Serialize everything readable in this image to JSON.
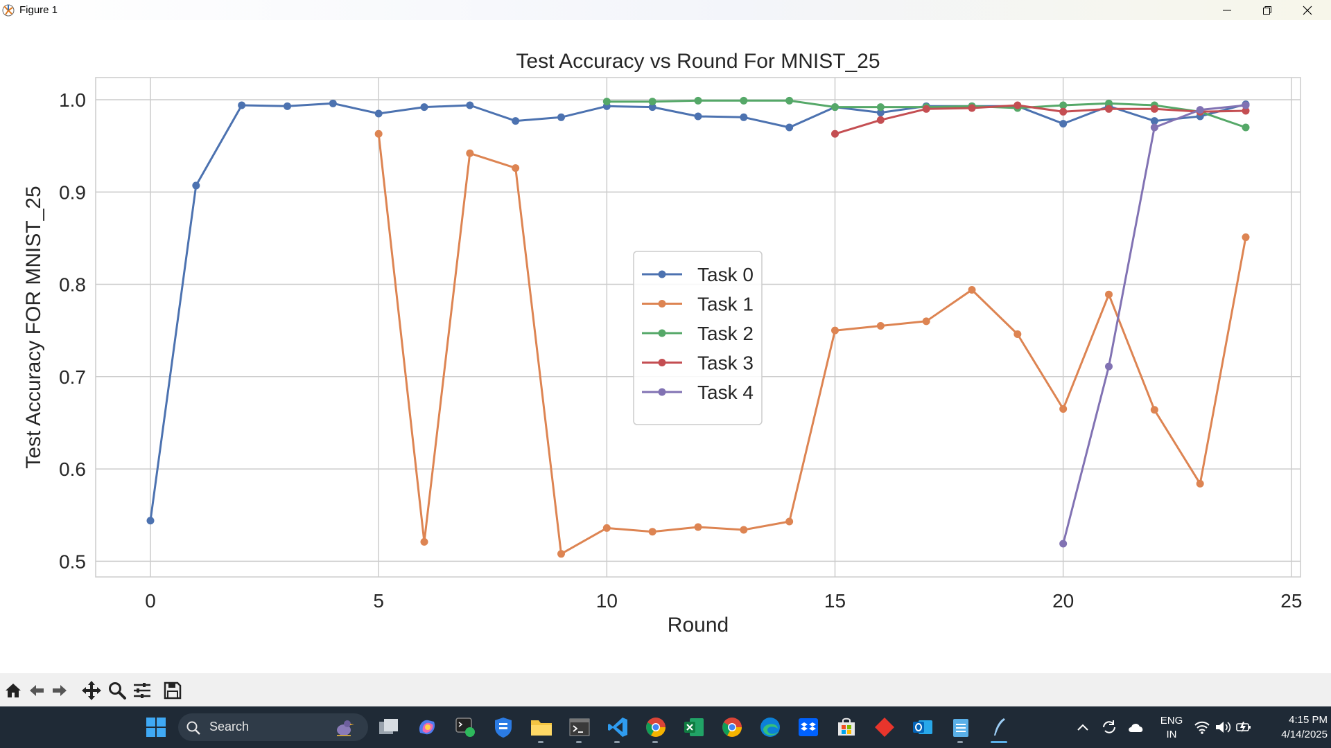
{
  "window": {
    "title": "Figure 1"
  },
  "chart_data": {
    "type": "line",
    "title": "Test Accuracy vs Round For MNIST_25",
    "xlabel": "Round",
    "ylabel": "Test Accuracy FOR MNIST_25",
    "xlim": [
      -1.2,
      25.2
    ],
    "ylim": [
      0.483,
      1.024
    ],
    "xticks": [
      0,
      5,
      10,
      15,
      20,
      25
    ],
    "yticks": [
      0.5,
      0.6,
      0.7,
      0.8,
      0.9,
      1.0
    ],
    "xtick_labels": [
      "0",
      "5",
      "10",
      "15",
      "20",
      "25"
    ],
    "ytick_labels": [
      "0.5",
      "0.6",
      "0.7",
      "0.8",
      "0.9",
      "1.0"
    ],
    "grid": true,
    "legend_position": "center",
    "series": [
      {
        "name": "Task 0",
        "color": "#4c72b0",
        "x": [
          0,
          1,
          2,
          3,
          4,
          5,
          6,
          7,
          8,
          9,
          10,
          11,
          12,
          13,
          14,
          15,
          16,
          17,
          18,
          19,
          20,
          21,
          22,
          23,
          24
        ],
        "y": [
          0.544,
          0.907,
          0.994,
          0.993,
          0.996,
          0.985,
          0.992,
          0.994,
          0.977,
          0.981,
          0.993,
          0.992,
          0.982,
          0.981,
          0.97,
          0.992,
          0.986,
          0.993,
          0.993,
          0.993,
          0.974,
          0.993,
          0.977,
          0.982,
          0.995
        ]
      },
      {
        "name": "Task 1",
        "color": "#dd8452",
        "x": [
          5,
          6,
          7,
          8,
          9,
          10,
          11,
          12,
          13,
          14,
          15,
          16,
          17,
          18,
          19,
          20,
          21,
          22,
          23,
          24
        ],
        "y": [
          0.963,
          0.521,
          0.942,
          0.926,
          0.508,
          0.536,
          0.532,
          0.537,
          0.534,
          0.543,
          0.75,
          0.755,
          0.76,
          0.794,
          0.746,
          0.665,
          0.789,
          0.664,
          0.584,
          0.851
        ]
      },
      {
        "name": "Task 2",
        "color": "#55a868",
        "x": [
          10,
          11,
          12,
          13,
          14,
          15,
          16,
          17,
          18,
          19,
          20,
          21,
          22,
          23,
          24
        ],
        "y": [
          0.998,
          0.998,
          0.999,
          0.999,
          0.999,
          0.992,
          0.992,
          0.992,
          0.993,
          0.991,
          0.994,
          0.996,
          0.994,
          0.987,
          0.97
        ]
      },
      {
        "name": "Task 3",
        "color": "#c44e52",
        "x": [
          15,
          16,
          17,
          18,
          19,
          20,
          21,
          22,
          23,
          24
        ],
        "y": [
          0.963,
          0.978,
          0.99,
          0.991,
          0.994,
          0.987,
          0.99,
          0.99,
          0.987,
          0.988
        ]
      },
      {
        "name": "Task 4",
        "color": "#8172b3",
        "x": [
          20,
          21,
          22,
          23,
          24
        ],
        "y": [
          0.519,
          0.711,
          0.97,
          0.989,
          0.994
        ]
      }
    ]
  },
  "toolbar": {
    "buttons": [
      "home-icon",
      "back-arrow-icon",
      "forward-arrow-icon",
      "pan-move-icon",
      "zoom-magnifier-icon",
      "configure-subplots-icon",
      "save-figure-icon"
    ]
  },
  "taskbar": {
    "search_label": "Search",
    "language_primary": "ENG",
    "language_secondary": "IN",
    "time": "4:15 PM",
    "date": "4/14/2025",
    "apps": [
      "start-icon",
      "task-view-icon",
      "copilot-icon",
      "terminal-app-icon",
      "security-icon",
      "file-explorer-icon",
      "command-prompt-icon",
      "vscode-icon",
      "chrome-icon",
      "excel-icon",
      "chrome-profile-icon",
      "edge-icon",
      "dropbox-icon",
      "store-icon",
      "git-icon",
      "outlook-icon",
      "notepad-icon",
      "python-figure-icon"
    ]
  }
}
